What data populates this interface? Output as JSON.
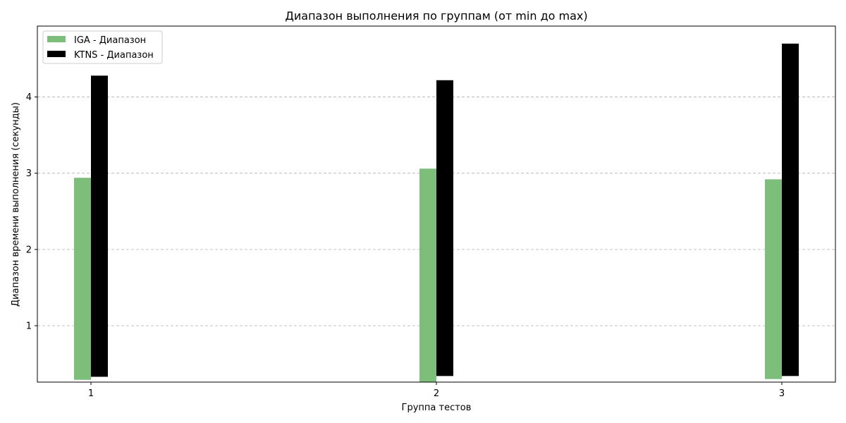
{
  "chart_data": {
    "type": "bar",
    "title": "Диапазон выполнения по группам (от min до max)",
    "xlabel": "Группа тестов",
    "ylabel": "Диапазон времени выполнения (секунды)",
    "categories": [
      "1",
      "2",
      "3"
    ],
    "series": [
      {
        "name": "IGA - Диапазон",
        "color": "#7dbe7b",
        "min": [
          0.29,
          0.26,
          0.3
        ],
        "max": [
          2.94,
          3.06,
          2.92
        ]
      },
      {
        "name": "KTNS - Диапазон",
        "color": "#000000",
        "min": [
          0.33,
          0.34,
          0.34
        ],
        "max": [
          4.28,
          4.22,
          4.7
        ]
      }
    ],
    "ylim": [
      0.26,
      4.93
    ],
    "yticks": [
      1,
      2,
      3,
      4
    ],
    "grid": "y",
    "legend_position": "top-left"
  }
}
